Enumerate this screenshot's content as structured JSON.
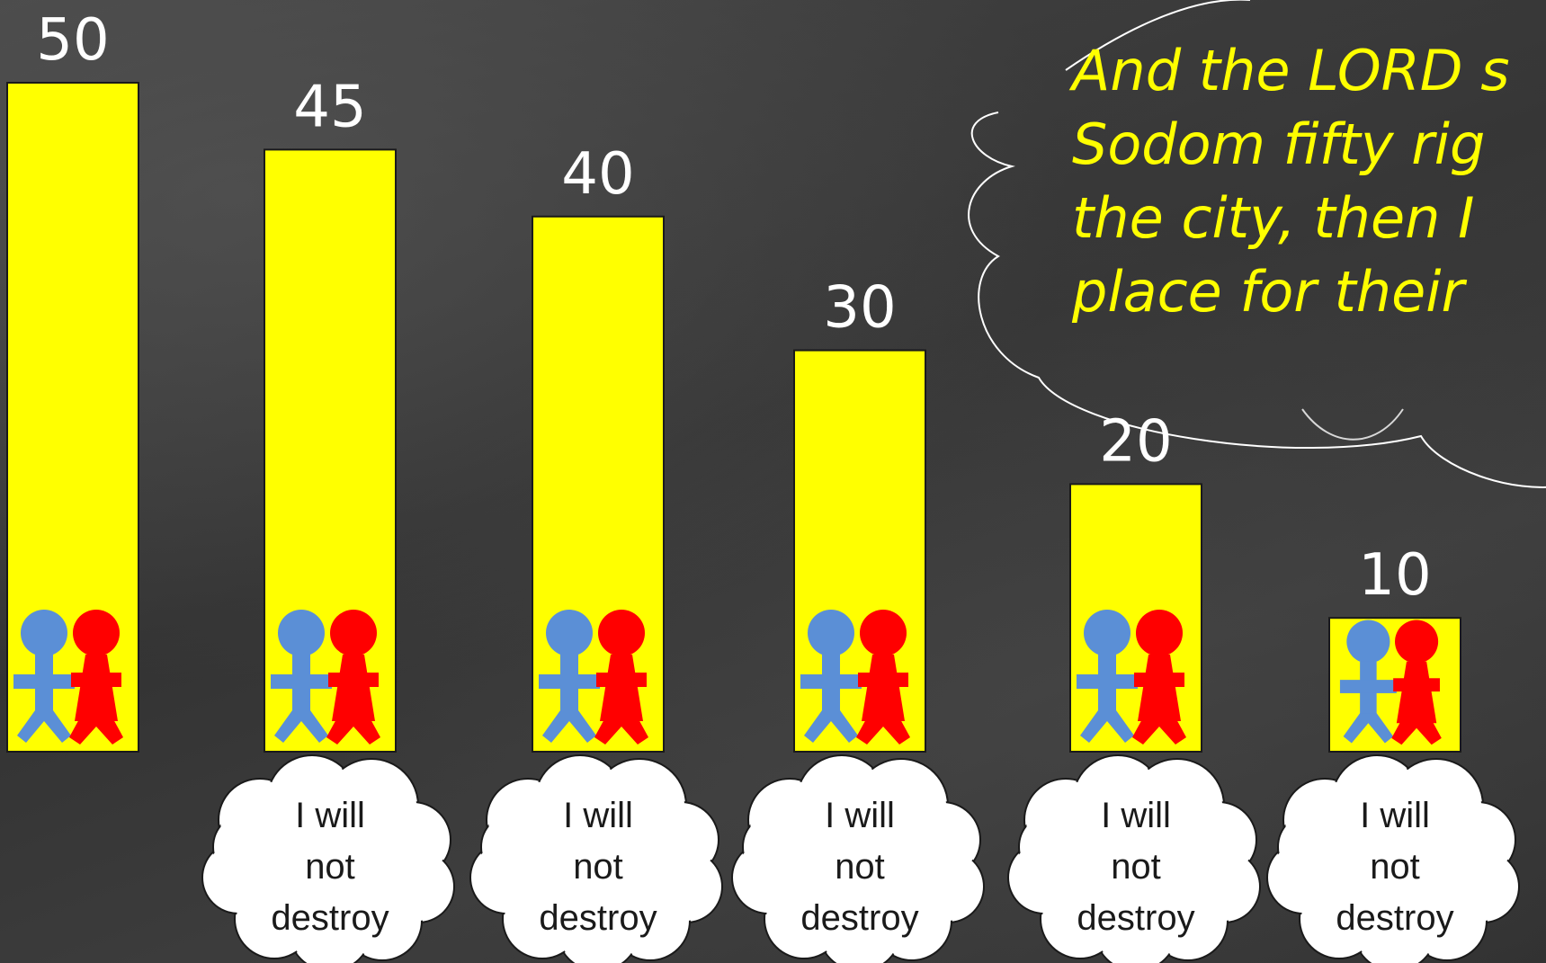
{
  "colors": {
    "bar_fill": "#ffff00",
    "bar_stroke": "#1a1a1a",
    "value_label": "#ffffff",
    "quote_text": "#ffff00",
    "cloud_fill": "#ffffff",
    "figure_man": "#5b8fd6",
    "figure_woman": "#ff0000"
  },
  "icons": [
    "man-figure-icon",
    "woman-figure-icon",
    "thought-cloud-icon"
  ],
  "quote": {
    "text": "And the LORD s\nSodom fifty rig\nthe city, then I\nplace for their"
  },
  "chart_data": {
    "type": "bar",
    "categories": [
      "50",
      "45",
      "40",
      "30",
      "20",
      "10"
    ],
    "values": [
      50,
      45,
      40,
      30,
      20,
      10
    ],
    "data_labels": [
      "50",
      "45",
      "40",
      "30",
      "20",
      "10"
    ],
    "ylim": [
      0,
      50
    ],
    "grid": false,
    "legend": "none",
    "bubbles": [
      null,
      [
        "I will",
        "not",
        "destroy"
      ],
      [
        "I will",
        "not",
        "destroy"
      ],
      [
        "I will",
        "not",
        "destroy"
      ],
      [
        "I will",
        "not",
        "destroy"
      ],
      [
        "I will",
        "not",
        "destroy"
      ]
    ]
  }
}
